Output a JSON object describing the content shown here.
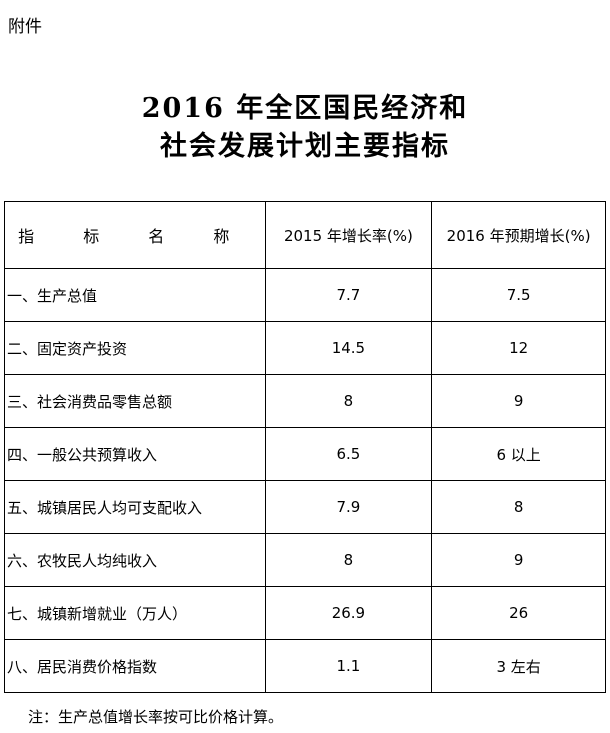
{
  "attachment_label": "附件",
  "title_line1": "2016 年全区国民经济和",
  "title_line2": "社会发展计划主要指标",
  "table": {
    "headers": [
      "指 标 名 称",
      "2015 年增长率(%)",
      "2016 年预期增长(%)"
    ],
    "rows": [
      [
        "一、生产总值",
        "7.7",
        "7.5"
      ],
      [
        "二、固定资产投资",
        "14.5",
        "12"
      ],
      [
        "三、社会消费品零售总额",
        "8",
        "9"
      ],
      [
        "四、一般公共预算收入",
        "6.5",
        "6 以上"
      ],
      [
        "五、城镇居民人均可支配收入",
        "7.9",
        "8"
      ],
      [
        "六、农牧民人均纯收入",
        "8",
        "9"
      ],
      [
        "七、城镇新增就业（万人）",
        "26.9",
        "26"
      ],
      [
        "八、居民消费价格指数",
        "1.1",
        "3 左右"
      ]
    ]
  },
  "note": "注：生产总值增长率按可比价格计算。"
}
